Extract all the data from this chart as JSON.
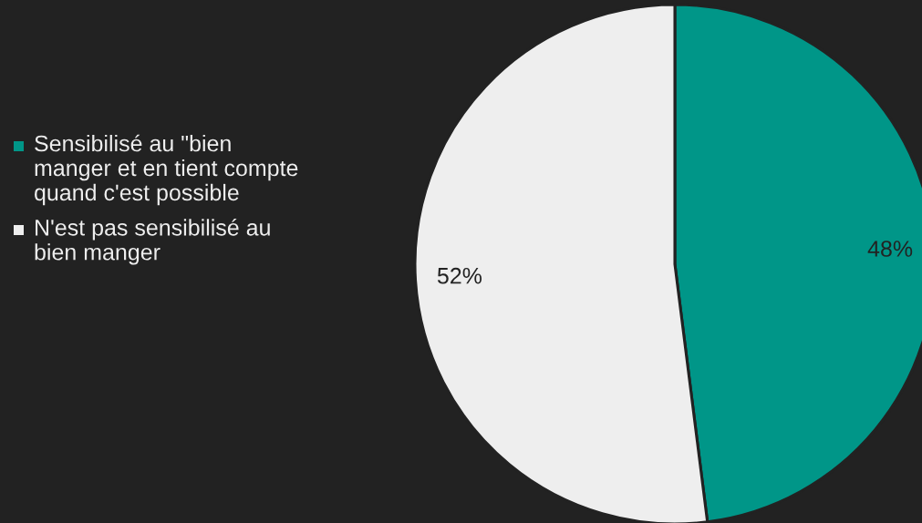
{
  "chart_data": {
    "type": "pie",
    "categories": [
      "Sensibilisé au \"bien manger et en tient compte quand c'est possible",
      "N'est pas sensibilisé au bien manger"
    ],
    "values": [
      48,
      52
    ],
    "colors": [
      "#009688",
      "#eeeeee"
    ],
    "value_labels": [
      "48%",
      "52%"
    ],
    "legend": "left"
  }
}
